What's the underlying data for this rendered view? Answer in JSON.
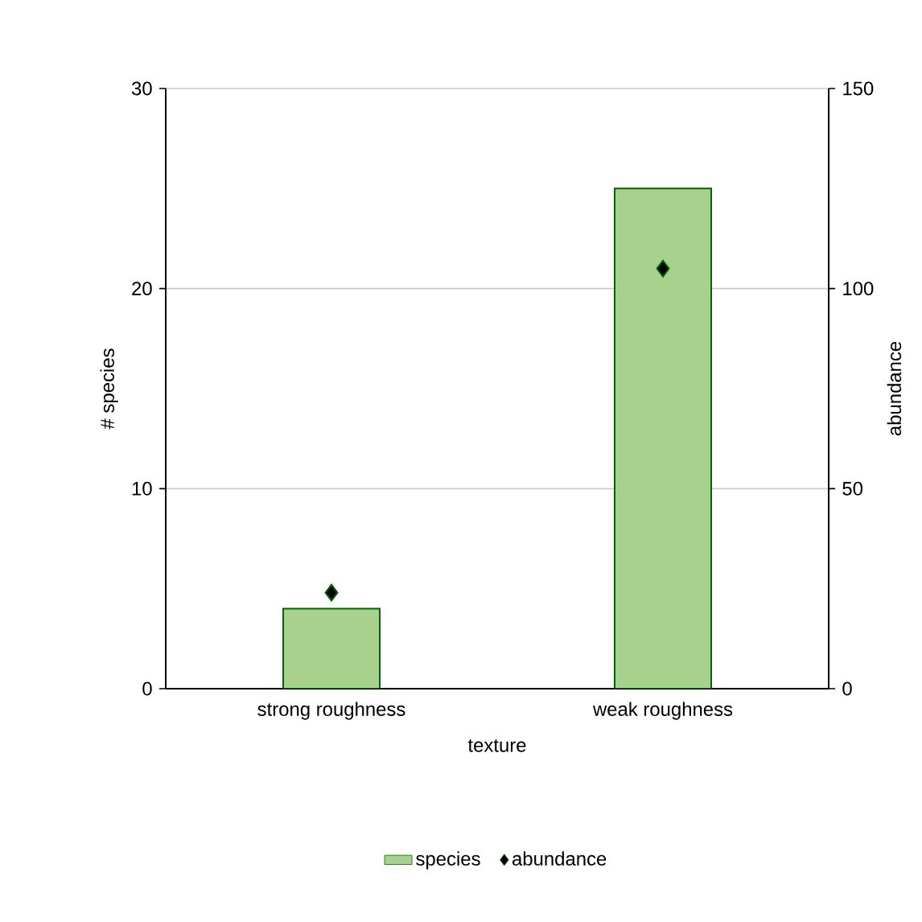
{
  "chart_data": {
    "type": "bar",
    "xlabel": "texture",
    "ylabel": "# species",
    "y2label": "abundance",
    "categories": [
      "strong roughness",
      "weak roughness"
    ],
    "series": [
      {
        "name": "species",
        "color": "#a9d18e",
        "values": [
          4,
          25
        ]
      },
      {
        "name": "abundance",
        "type": "scatter",
        "axis": "y2",
        "color": "#000000",
        "values": [
          24,
          105
        ]
      }
    ],
    "marker": "diamond",
    "ylim": [
      0,
      30
    ],
    "yticks": [
      0,
      10,
      20,
      30
    ],
    "y2lim": [
      0,
      150
    ],
    "y2ticks": [
      0,
      50,
      100,
      150
    ],
    "grid": "y",
    "legend": "bottom"
  }
}
